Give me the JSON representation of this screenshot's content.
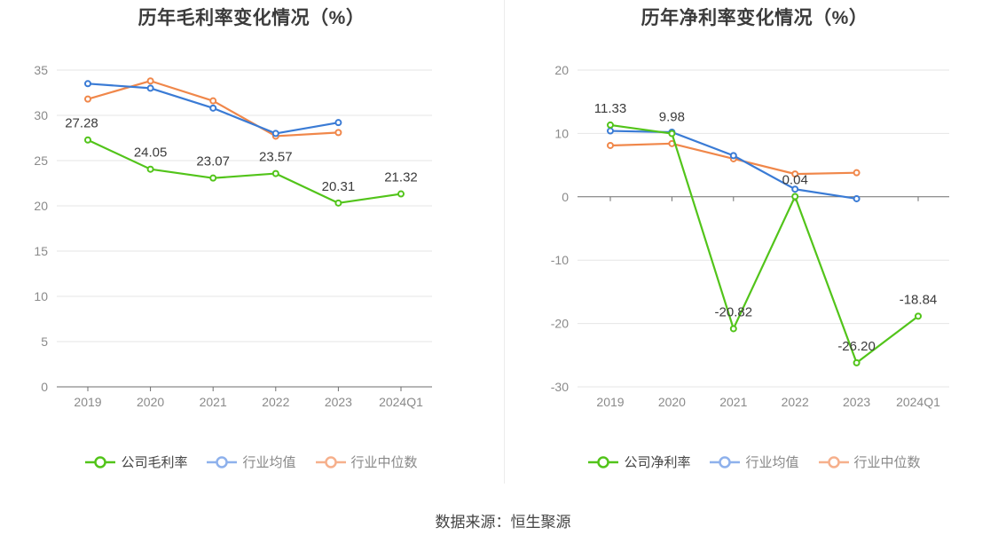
{
  "chart_data": [
    {
      "type": "line",
      "title": "历年毛利率变化情况（%）",
      "categories": [
        "2019",
        "2020",
        "2021",
        "2022",
        "2023",
        "2024Q1"
      ],
      "ylim": [
        0,
        35
      ],
      "yticks": [
        0,
        5,
        10,
        15,
        20,
        25,
        30,
        35
      ],
      "grid": true,
      "legend_position": "bottom",
      "series": [
        {
          "name": "公司毛利率",
          "color": "#52c41a",
          "values": [
            27.28,
            24.05,
            23.07,
            23.57,
            20.31,
            21.32
          ],
          "labels": [
            "27.28",
            "24.05",
            "23.07",
            "23.57",
            "20.31",
            "21.32"
          ]
        },
        {
          "name": "行业均值",
          "color": "#3a7bd5",
          "values": [
            33.5,
            33.0,
            30.8,
            28.0,
            29.2,
            null
          ]
        },
        {
          "name": "行业中位数",
          "color": "#f0874a",
          "values": [
            31.8,
            33.8,
            31.6,
            27.7,
            28.1,
            null
          ]
        }
      ]
    },
    {
      "type": "line",
      "title": "历年净利率变化情况（%）",
      "categories": [
        "2019",
        "2020",
        "2021",
        "2022",
        "2023",
        "2024Q1"
      ],
      "ylim": [
        -30,
        20
      ],
      "yticks": [
        -30,
        -20,
        -10,
        0,
        10,
        20
      ],
      "grid": true,
      "legend_position": "bottom",
      "series": [
        {
          "name": "公司净利率",
          "color": "#52c41a",
          "values": [
            11.33,
            9.98,
            -20.82,
            0.04,
            -26.2,
            -18.84
          ],
          "labels": [
            "11.33",
            "9.98",
            "-20.82",
            "0.04",
            "-26.20",
            "-18.84"
          ]
        },
        {
          "name": "行业均值",
          "color": "#3a7bd5",
          "values": [
            10.4,
            10.2,
            6.5,
            1.2,
            -0.3,
            null
          ]
        },
        {
          "name": "行业中位数",
          "color": "#f0874a",
          "values": [
            8.1,
            8.4,
            6.0,
            3.6,
            3.8,
            null
          ]
        }
      ]
    }
  ],
  "footer": {
    "source": "数据来源：恒生聚源"
  }
}
